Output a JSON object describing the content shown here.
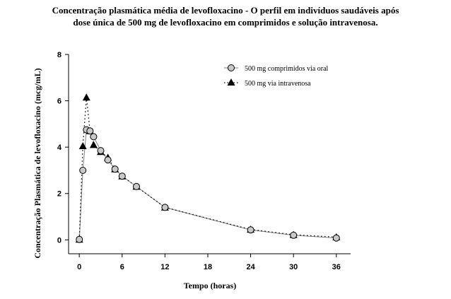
{
  "chart_data": {
    "type": "line",
    "title_lines": [
      "Concentração plasmática média de levofloxacino - O perfil em indivíduos saudáveis após",
      "dose única de 500 mg de levofloxacino em comprimidos e solução intravenosa."
    ],
    "xlabel": "Tempo (horas)",
    "ylabel": "Concentração Plasmática de levofloxacino (mcg/mL)",
    "xlim": [
      -1.5,
      38
    ],
    "ylim": [
      -0.6,
      8
    ],
    "xticks": [
      0,
      6,
      12,
      18,
      24,
      30,
      36
    ],
    "yticks": [
      0,
      2,
      4,
      6,
      8
    ],
    "x_tick_labels": [
      "0",
      "6",
      "12",
      "18",
      "24",
      "30",
      "36"
    ],
    "y_tick_labels": [
      "0",
      "2",
      "4",
      "6",
      "8"
    ],
    "grid": false,
    "legend_position": "top-right",
    "series": [
      {
        "name": "500 mg comprimidos via oral",
        "marker": "circle",
        "line_style": "solid",
        "color": "#808080",
        "x": [
          0,
          0.5,
          1,
          1.5,
          2,
          3,
          4,
          5,
          6,
          8,
          12,
          24,
          30,
          36
        ],
        "y": [
          0.02,
          3.0,
          4.75,
          4.7,
          4.45,
          3.85,
          3.45,
          3.05,
          2.75,
          2.3,
          1.4,
          0.43,
          0.2,
          0.08
        ]
      },
      {
        "name": "500 mg via intravenosa",
        "marker": "triangle",
        "line_style": "dotted",
        "color": "#000000",
        "x": [
          0,
          0.5,
          1,
          1.5,
          2,
          3,
          4,
          5,
          6,
          8,
          12,
          24,
          30,
          36
        ],
        "y": [
          0.02,
          4.05,
          6.15,
          4.7,
          4.1,
          3.8,
          3.55,
          3.05,
          2.75,
          2.3,
          1.4,
          0.45,
          0.22,
          0.12
        ]
      }
    ]
  }
}
